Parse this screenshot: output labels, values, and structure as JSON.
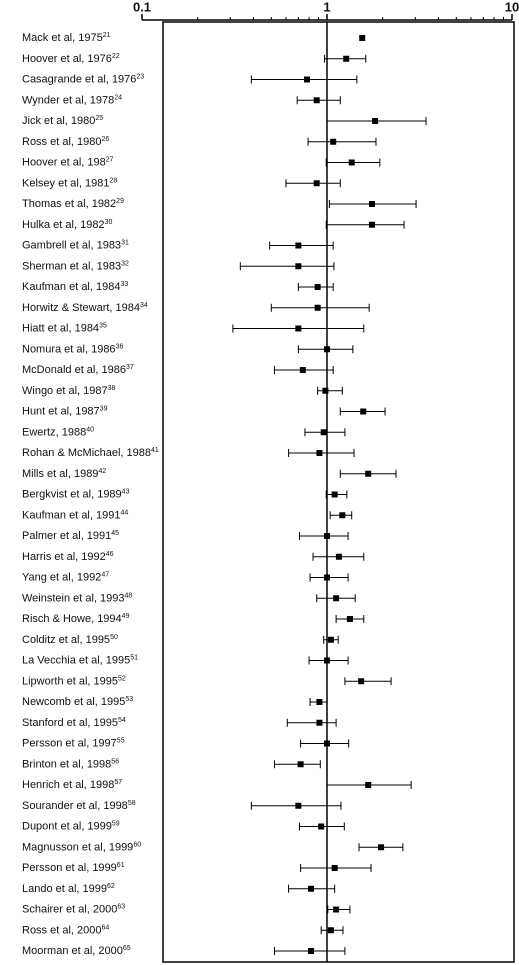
{
  "chart_data": {
    "type": "forest",
    "xscale": "log",
    "xlim": [
      0.1,
      10
    ],
    "xticks": [
      0.1,
      1,
      10
    ],
    "minor_xticks": [
      0.2,
      0.3,
      0.4,
      0.5,
      0.6,
      0.7,
      0.8,
      0.9,
      2,
      3,
      4,
      5,
      6,
      7,
      8,
      9
    ],
    "reference_line": 1,
    "color": "#000000",
    "categories": [
      "Mack et al, 1975",
      "Hoover et al, 1976",
      "Casagrande et al, 1976",
      "Wynder et al, 1978",
      "Jick et al, 1980",
      "Ross et al, 1980",
      "Hoover et al, 198",
      "Kelsey et al, 1981",
      "Thomas et al, 1982",
      "Hulka et al, 1982",
      "Gambrell et al, 1983",
      "Sherman et al, 1983",
      "Kaufman et al, 1984",
      "Horwitz & Stewart, 1984",
      "Hiatt et al, 1984",
      "Nomura et al, 1986",
      "McDonald et al, 1986",
      "Wingo et al, 1987",
      "Hunt et al, 1987",
      "Ewertz, 1988",
      "Rohan & McMichael, 1988",
      "Mills et al, 1989",
      "Bergkvist et al, 1989",
      "Kaufman et al, 1991",
      "Palmer et al, 1991",
      "Harris et al, 1992",
      "Yang et al, 1992",
      "Weinstein et al, 1993",
      "Risch & Howe, 1994",
      "Colditz et al, 1995",
      "La Vecchia et al, 1995",
      "Lipworth et al, 1995",
      "Newcomb et al, 1995",
      "Stanford et al, 1995",
      "Persson et al, 1997",
      "Brinton et al, 1998",
      "Henrich et al, 1998",
      "Sourander et al, 1998",
      "Dupont et al, 1999",
      "Magnusson et al, 1999",
      "Persson et al, 1999",
      "Lando et al, 1999",
      "Schairer et al, 2000",
      "Ross et al, 2000",
      "Moorman et al, 2000"
    ],
    "refs": [
      "21",
      "22",
      "23",
      "24",
      "25",
      "26",
      "27",
      "28",
      "29",
      "30",
      "31",
      "32",
      "33",
      "34",
      "35",
      "36",
      "37",
      "38",
      "39",
      "40",
      "41",
      "42",
      "43",
      "44",
      "45",
      "46",
      "47",
      "48",
      "49",
      "50",
      "51",
      "52",
      "53",
      "54",
      "55",
      "56",
      "57",
      "58",
      "59",
      "60",
      "61",
      "62",
      "63",
      "64",
      "65"
    ],
    "values": [
      1.55,
      1.27,
      0.78,
      0.88,
      1.82,
      1.08,
      1.36,
      0.88,
      1.75,
      1.75,
      0.7,
      0.7,
      0.89,
      0.89,
      0.7,
      1.0,
      0.74,
      0.98,
      1.57,
      0.96,
      0.91,
      1.67,
      1.1,
      1.21,
      1.0,
      1.16,
      1.0,
      1.12,
      1.33,
      1.05,
      1.0,
      1.53,
      0.91,
      0.91,
      1.0,
      0.72,
      1.67,
      0.7,
      0.93,
      1.96,
      1.1,
      0.82,
      1.12,
      1.05,
      0.82
    ],
    "ci_low": [
      null,
      0.97,
      0.39,
      0.69,
      1.0,
      0.79,
      0.99,
      0.6,
      1.03,
      0.99,
      0.49,
      0.34,
      0.7,
      0.5,
      0.31,
      0.7,
      0.52,
      0.89,
      1.18,
      0.76,
      0.62,
      1.18,
      0.99,
      1.04,
      0.71,
      0.84,
      0.81,
      0.88,
      1.12,
      0.96,
      0.8,
      1.25,
      0.81,
      0.61,
      0.72,
      0.52,
      1.0,
      0.39,
      0.71,
      1.49,
      0.72,
      0.62,
      1.01,
      0.93,
      0.52
    ],
    "ci_high": [
      null,
      1.62,
      1.45,
      1.18,
      3.43,
      1.84,
      1.93,
      1.18,
      3.03,
      2.61,
      1.08,
      1.09,
      1.08,
      1.69,
      1.58,
      1.38,
      1.08,
      1.21,
      2.06,
      1.25,
      1.4,
      2.36,
      1.28,
      1.36,
      1.3,
      1.58,
      1.3,
      1.42,
      1.58,
      1.15,
      1.3,
      2.22,
      1.0,
      1.12,
      1.31,
      0.92,
      2.85,
      1.19,
      1.24,
      2.57,
      1.73,
      1.1,
      1.33,
      1.22,
      1.25
    ]
  }
}
